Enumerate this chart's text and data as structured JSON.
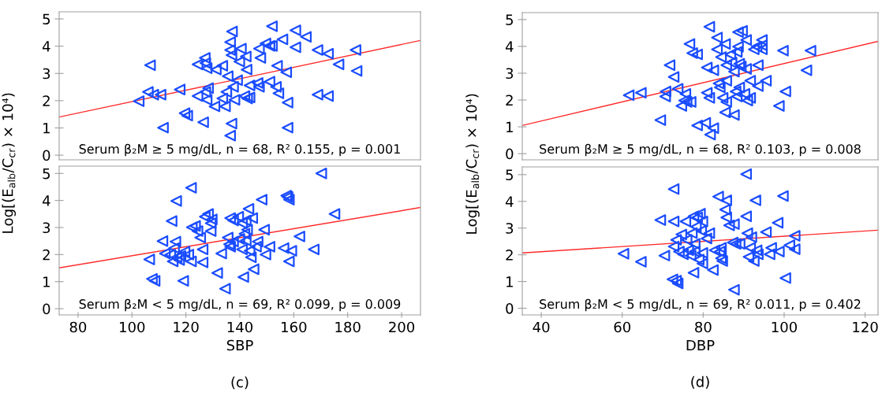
{
  "chart_data": [
    {
      "type": "scatter",
      "tick_labels": "y",
      "xlim": [
        73,
        207
      ],
      "ylim": [
        -0.17,
        5.26
      ],
      "yticks": [
        0,
        1,
        2,
        3,
        4,
        5
      ],
      "annotations": [
        "Serum β₂M ≥ 5 mg/dL, n = 68, R² 0.155, p = 0.001"
      ],
      "series": [
        {
          "marker": "triangle",
          "color": "#1a4cff",
          "x": [
            102.5,
            105.9,
            106.7,
            107.9,
            110.6,
            111.5,
            117.7,
            119.5,
            120.5,
            124.3,
            124.3,
            126.4,
            127.0,
            127.2,
            127.7,
            127.2,
            128.2,
            127.7,
            130.6,
            131.1,
            133.5,
            133.5,
            134.5,
            135.5,
            135.0,
            136.9,
            136.4,
            137.1,
            136.4,
            136.4,
            136.9,
            137.5,
            138.0,
            139.0,
            140.4,
            139.8,
            142.2,
            142.5,
            141.7,
            142.7,
            143.6,
            143.6,
            146.6,
            147.1,
            147.1,
            147.6,
            149.5,
            151.0,
            151.9,
            151.9,
            151.0,
            153.8,
            153.4,
            154.3,
            155.8,
            157.2,
            157.7,
            157.7,
            160.6,
            160.6,
            164.5,
            168.8,
            168.8,
            172.7,
            172.7,
            176.6,
            182.9,
            183.3
          ],
          "values": [
            1.98,
            2.32,
            3.3,
            2.22,
            2.22,
            1.01,
            2.41,
            1.54,
            1.45,
            2.17,
            3.33,
            1.21,
            3.57,
            3.38,
            3.19,
            2.32,
            2.46,
            2.03,
            1.79,
            3.14,
            3.28,
            2.08,
            1.79,
            2.9,
            2.32,
            1.16,
            0.72,
            4.54,
            4.15,
            3.86,
            3.67,
            2.51,
            2.03,
            2.75,
            3.91,
            3.43,
            3.62,
            3.14,
            2.17,
            2.08,
            2.12,
            2.56,
            2.65,
            3.91,
            2.51,
            3.57,
            4.1,
            4.01,
            4.01,
            4.73,
            2.7,
            3.28,
            2.51,
            2.27,
            4.25,
            3.04,
            1.93,
            1.01,
            3.96,
            4.58,
            4.34,
            3.86,
            2.22,
            2.17,
            3.72,
            3.33,
            3.86,
            3.09
          ]
        },
        {
          "type": "line",
          "marker": "none",
          "color": "#ff2a2a",
          "x": [
            73,
            207
          ],
          "values": [
            1.4,
            4.21
          ]
        }
      ]
    },
    {
      "type": "scatter",
      "xlim": [
        73,
        207
      ],
      "ylim": [
        -0.23,
        5.27
      ],
      "xticks": [
        80,
        100,
        120,
        140,
        160,
        180,
        200
      ],
      "yticks": [
        0,
        1,
        2,
        3,
        4,
        5
      ],
      "xlabel": "SBP",
      "ylabel": "Log[(E$_{alb}$/C$_{cr}$) × 10⁴)",
      "annotations": [
        "Serum β₂M < 5 mg/dL, n = 69, R² 0.099, p = 0.009",
        "(c)"
      ],
      "series": [
        {
          "marker": "triangle",
          "color": "#1a4cff",
          "x": [
            106.4,
            107.4,
            108.4,
            111.3,
            112.2,
            114.7,
            114.2,
            115.1,
            115.6,
            116.1,
            116.4,
            116.6,
            118.0,
            119.0,
            119.5,
            120.9,
            121.9,
            122.2,
            121.9,
            123.4,
            124.3,
            125.3,
            126.2,
            126.2,
            127.0,
            128.2,
            129.2,
            129.2,
            129.6,
            131.6,
            133.1,
            134.5,
            135.5,
            136.0,
            136.4,
            136.4,
            137.5,
            139.4,
            139.8,
            140.8,
            140.8,
            141.3,
            141.7,
            142.2,
            142.7,
            143.2,
            143.6,
            144.1,
            144.6,
            145.1,
            146.0,
            146.6,
            148.1,
            149.0,
            149.5,
            151.0,
            156.2,
            157.2,
            157.7,
            158.2,
            159.1,
            162.1,
            167.4,
            170.2,
            175.1,
            158.2,
            117.5,
            137.5,
            142.2
          ],
          "values": [
            1.82,
            1.1,
            1.03,
            2.5,
            2.04,
            3.24,
            2.0,
            1.75,
            2.24,
            2.48,
            3.98,
            1.9,
            1.95,
            1.03,
            2.11,
            2.0,
            4.47,
            3.01,
            1.75,
            3.06,
            2.87,
            2.63,
            2.19,
            1.71,
            3.4,
            3.5,
            3.16,
            2.87,
            3.3,
            1.32,
            2.04,
            0.74,
            2.63,
            2.38,
            3.35,
            2.29,
            2.48,
            3.4,
            2.58,
            2.19,
            3.16,
            1.17,
            2.77,
            3.26,
            2.92,
            3.69,
            2.14,
            1.9,
            3.35,
            1.46,
            2.29,
            2.48,
            4.03,
            2.92,
            2.0,
            2.29,
            2.24,
            4.18,
            4.13,
            1.75,
            2.14,
            2.67,
            2.19,
            5.0,
            3.5,
            4.03,
            1.8,
            3.26,
            2.52
          ]
        },
        {
          "type": "line",
          "marker": "none",
          "color": "#ff2a2a",
          "x": [
            73,
            207
          ],
          "values": [
            1.51,
            3.74
          ]
        }
      ]
    },
    {
      "type": "scatter",
      "tick_labels": "y",
      "xlim": [
        35.3,
        123.2
      ],
      "ylim": [
        -0.23,
        5.26
      ],
      "yticks": [
        0,
        1,
        2,
        3,
        4,
        5
      ],
      "annotations": [
        "Serum β₂M ≥ 5 mg/dL, n = 68, R² 0.103, p = 0.008"
      ],
      "series": [
        {
          "marker": "triangle",
          "color": "#1a4cff",
          "x": [
            61.6,
            64.6,
            69.4,
            70.7,
            70.6,
            71.7,
            72.7,
            73.7,
            74.6,
            75.6,
            75.3,
            75.9,
            76.6,
            76.9,
            77.3,
            78.5,
            78.5,
            80.5,
            80.9,
            80.9,
            81.5,
            81.5,
            82.5,
            82.5,
            81.7,
            83.4,
            83.4,
            83.8,
            84.1,
            84.4,
            85.4,
            84.8,
            85.4,
            85.7,
            85.7,
            86.7,
            87.0,
            87.6,
            87.6,
            88.0,
            88.3,
            88.3,
            88.6,
            88.9,
            88.9,
            88.6,
            89.6,
            89.3,
            90.2,
            90.6,
            90.6,
            90.9,
            91.6,
            91.6,
            92.5,
            93.2,
            93.5,
            93.5,
            94.5,
            94.5,
            95.5,
            94.5,
            98.7,
            99.7,
            100.3,
            105.5,
            106.5,
            85.7
          ],
          "values": [
            2.18,
            2.27,
            1.25,
            2.32,
            2.13,
            3.3,
            2.86,
            2.42,
            1.78,
            2.23,
            1.98,
            1.93,
            4.09,
            1.93,
            3.75,
            3.7,
            1.05,
            1.15,
            3.21,
            2.27,
            4.73,
            2.08,
            3.11,
            0.95,
            0.71,
            4.33,
            3.89,
            2.62,
            2.47,
            3.6,
            4.09,
            2.08,
            1.54,
            1.93,
            2.72,
            3.7,
            3.4,
            3.06,
            1.44,
            2.32,
            3.79,
            2.13,
            3.99,
            3.35,
            2.47,
            4.53,
            4.58,
            3.25,
            2.23,
            4.24,
            3.16,
            1.98,
            2.08,
            2.72,
            3.89,
            3.99,
            3.3,
            2.52,
            4.24,
            3.89,
            2.72,
            4.04,
            1.78,
            3.84,
            2.32,
            3.11,
            3.84,
            3.3
          ]
        },
        {
          "type": "line",
          "marker": "none",
          "color": "#ff2a2a",
          "x": [
            35.3,
            123.2
          ],
          "values": [
            1.05,
            4.19
          ]
        }
      ]
    },
    {
      "type": "scatter",
      "xlim": [
        35.3,
        123.2
      ],
      "ylim": [
        -0.25,
        5.29
      ],
      "xticks": [
        40,
        60,
        80,
        100,
        120
      ],
      "yticks": [
        0,
        1,
        2,
        3,
        4,
        5
      ],
      "xlabel": "DBP",
      "ylabel": "Log[(E$_{alb}$/C$_{cr}$) × 10⁴)",
      "annotations": [
        "Serum β₂M < 5 mg/dL, n = 69, R² 0.011, p = 0.402",
        "(d)"
      ],
      "series": [
        {
          "marker": "triangle",
          "color": "#1a4cff",
          "x": [
            60.3,
            64.6,
            69.4,
            70.4,
            72.4,
            72.7,
            72.7,
            72.7,
            73.3,
            73.3,
            73.7,
            74.0,
            74.6,
            75.0,
            75.6,
            75.9,
            76.3,
            76.9,
            77.2,
            77.6,
            77.6,
            77.9,
            78.2,
            78.5,
            78.9,
            79.2,
            79.5,
            79.8,
            79.8,
            79.8,
            80.8,
            81.5,
            82.4,
            82.8,
            83.7,
            84.1,
            84.4,
            84.4,
            84.7,
            85.7,
            85.7,
            86.4,
            87.3,
            87.6,
            87.6,
            88.0,
            90.6,
            90.6,
            90.9,
            91.2,
            91.6,
            91.9,
            92.5,
            92.9,
            93.2,
            93.5,
            95.5,
            96.4,
            96.8,
            98.7,
            98.4,
            99.7,
            100.3,
            101.3,
            102.6,
            102.6,
            85.4,
            89.0,
            77.9
          ],
          "values": [
            2.04,
            1.74,
            3.3,
            1.97,
            1.08,
            3.25,
            4.46,
            2.31,
            2.56,
            1.03,
            0.93,
            2.12,
            2.76,
            2.02,
            3.25,
            2.56,
            2.17,
            1.97,
            2.81,
            3.44,
            1.33,
            2.12,
            3.05,
            3.4,
            1.82,
            3.54,
            2.9,
            3.25,
            2.07,
            1.67,
            2.61,
            2.81,
            1.43,
            2.17,
            4.18,
            2.12,
            1.87,
            2.26,
            1.77,
            4.04,
            3.4,
            3.1,
            2.46,
            3.15,
            0.69,
            2.41,
            3.44,
            5.02,
            2.81,
            1.92,
            2.26,
            2.66,
            1.77,
            4.04,
            2.17,
            2.02,
            2.85,
            2.02,
            2.26,
            2.12,
            3.2,
            4.2,
            1.13,
            2.36,
            2.71,
            2.21,
            3.69,
            2.41,
            2.41
          ]
        },
        {
          "type": "line",
          "marker": "none",
          "color": "#ff2a2a",
          "x": [
            35.3,
            123.2
          ],
          "values": [
            2.07,
            2.92
          ]
        }
      ]
    }
  ]
}
